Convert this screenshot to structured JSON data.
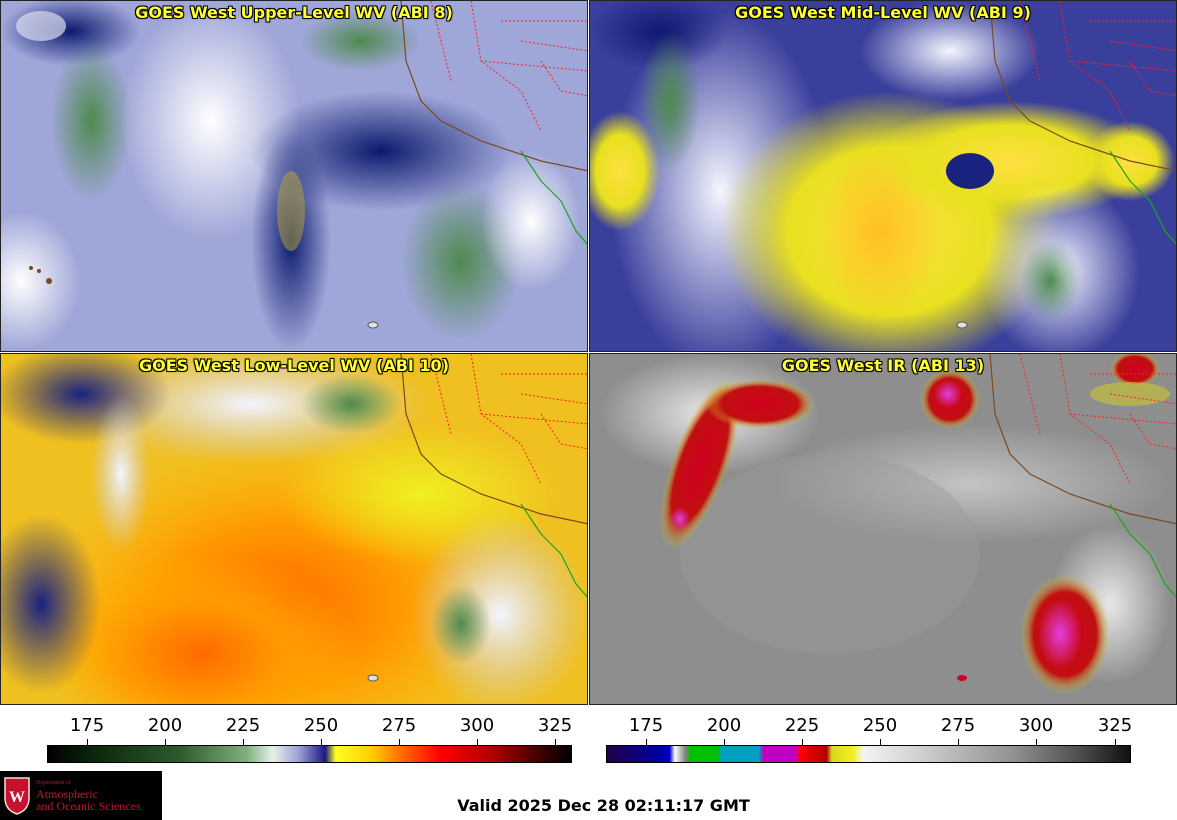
{
  "panels": [
    {
      "title": "GOES West Upper-Level WV (ABI 8)"
    },
    {
      "title": "GOES West Mid-Level WV (ABI 9)"
    },
    {
      "title": "GOES West Low-Level WV (ABI 10)"
    },
    {
      "title": "GOES West IR (ABI 13)"
    }
  ],
  "colorbars": {
    "left_ticks": [
      "175",
      "200",
      "225",
      "250",
      "275",
      "300",
      "325"
    ],
    "right_ticks": [
      "175",
      "200",
      "225",
      "250",
      "275",
      "300",
      "325"
    ]
  },
  "logo": {
    "line1": "Department of",
    "line2": "Atmospheric",
    "line3": "and Oceanic Sciences"
  },
  "valid_time": "Valid 2025 Dec 28 02:11:17 GMT",
  "colors": {
    "title_yellow": "#ffff33",
    "state_borders": "#ff2020",
    "coastline": "#7a4a20",
    "mexico_coast": "#20a020",
    "logo_red": "#c8102e"
  }
}
